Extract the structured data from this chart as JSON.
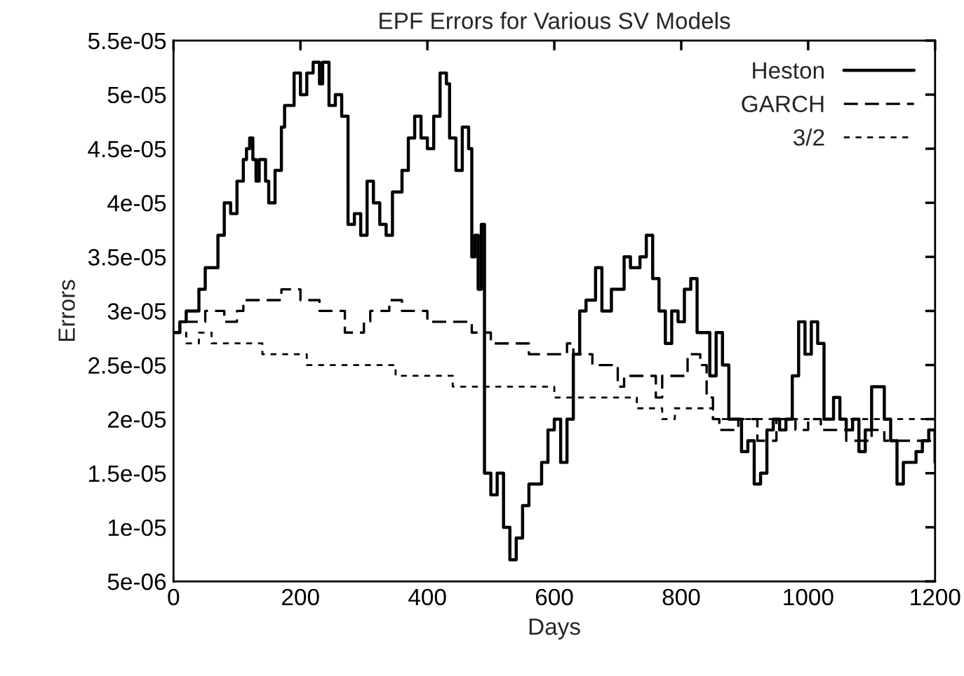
{
  "chart_data": {
    "type": "step",
    "title": "EPF Errors for Various SV Models",
    "xlabel": "Days",
    "ylabel": "Errors",
    "xlim": [
      0,
      1200
    ],
    "xticks": [
      0,
      200,
      400,
      600,
      800,
      1000,
      1200
    ],
    "ylim": [
      5e-06,
      5.5e-05
    ],
    "yticks": [
      {
        "value": 5e-06,
        "label": "5e-06"
      },
      {
        "value": 1e-05,
        "label": "1e-05"
      },
      {
        "value": 1.5e-05,
        "label": "1.5e-05"
      },
      {
        "value": 2e-05,
        "label": "2e-05"
      },
      {
        "value": 2.5e-05,
        "label": "2.5e-05"
      },
      {
        "value": 3e-05,
        "label": "3e-05"
      },
      {
        "value": 3.5e-05,
        "label": "3.5e-05"
      },
      {
        "value": 4e-05,
        "label": "4e-05"
      },
      {
        "value": 4.5e-05,
        "label": "4.5e-05"
      },
      {
        "value": 5e-05,
        "label": "5e-05"
      },
      {
        "value": 5.5e-05,
        "label": "5.5e-05"
      }
    ],
    "grid": false,
    "legend": "top right",
    "series": [
      {
        "name": "Heston",
        "color": "#000000",
        "line_style": "solid",
        "x": [
          0,
          10,
          20,
          30,
          40,
          50,
          60,
          70,
          80,
          90,
          100,
          110,
          115,
          120,
          125,
          130,
          135,
          145,
          150,
          160,
          165,
          170,
          175,
          180,
          190,
          200,
          210,
          220,
          230,
          235,
          245,
          255,
          265,
          270,
          275,
          285,
          295,
          305,
          315,
          325,
          335,
          345,
          360,
          370,
          380,
          390,
          400,
          410,
          420,
          430,
          435,
          445,
          455,
          465,
          470,
          475,
          480,
          485,
          490,
          500,
          510,
          520,
          530,
          540,
          550,
          560,
          570,
          580,
          590,
          600,
          610,
          620,
          630,
          640,
          650,
          665,
          675,
          690,
          700,
          710,
          720,
          735,
          745,
          755,
          765,
          775,
          785,
          795,
          805,
          815,
          825,
          835,
          845,
          855,
          865,
          875,
          885,
          895,
          905,
          915,
          925,
          935,
          945,
          955,
          965,
          975,
          985,
          995,
          1005,
          1015,
          1025,
          1040,
          1050,
          1060,
          1070,
          1080,
          1090,
          1100,
          1110,
          1120,
          1130,
          1140,
          1150,
          1160,
          1170,
          1180,
          1190,
          1200
        ],
        "values": [
          2.8e-05,
          2.9e-05,
          3e-05,
          3e-05,
          3.2e-05,
          3.4e-05,
          3.4e-05,
          3.7e-05,
          4e-05,
          3.9e-05,
          4.2e-05,
          4.4e-05,
          4.5e-05,
          4.6e-05,
          4.4e-05,
          4.2e-05,
          4.4e-05,
          4.2e-05,
          4e-05,
          4.3e-05,
          4.3e-05,
          4.7e-05,
          4.9e-05,
          4.9e-05,
          5.2e-05,
          5e-05,
          5.2e-05,
          5.3e-05,
          5.1e-05,
          5.3e-05,
          4.9e-05,
          5e-05,
          4.8e-05,
          4.8e-05,
          3.8e-05,
          3.9e-05,
          3.7e-05,
          4.2e-05,
          4e-05,
          3.8e-05,
          3.7e-05,
          4.1e-05,
          4.3e-05,
          4.6e-05,
          4.8e-05,
          4.6e-05,
          4.5e-05,
          4.8e-05,
          5.2e-05,
          5.1e-05,
          4.6e-05,
          4.3e-05,
          4.7e-05,
          4.5e-05,
          3.5e-05,
          3.7e-05,
          3.2e-05,
          3.8e-05,
          1.5e-05,
          1.3e-05,
          1.5e-05,
          1e-05,
          7e-06,
          9e-06,
          1.2e-05,
          1.4e-05,
          1.4e-05,
          1.6e-05,
          1.9e-05,
          2e-05,
          1.6e-05,
          2e-05,
          2.6e-05,
          3e-05,
          3.1e-05,
          3.4e-05,
          3e-05,
          3.2e-05,
          3.2e-05,
          3.5e-05,
          3.4e-05,
          3.5e-05,
          3.7e-05,
          3.3e-05,
          3e-05,
          2.7e-05,
          3e-05,
          2.9e-05,
          3.2e-05,
          3.3e-05,
          2.8e-05,
          2.8e-05,
          2.4e-05,
          2.8e-05,
          2.5e-05,
          2e-05,
          2e-05,
          1.7e-05,
          1.8e-05,
          1.4e-05,
          1.5e-05,
          1.9e-05,
          2e-05,
          1.9e-05,
          2e-05,
          2.4e-05,
          2.9e-05,
          2.6e-05,
          2.9e-05,
          2.7e-05,
          2e-05,
          2.2e-05,
          2e-05,
          1.9e-05,
          2e-05,
          1.7e-05,
          1.9e-05,
          2.3e-05,
          2.3e-05,
          2e-05,
          1.8e-05,
          1.4e-05,
          1.6e-05,
          1.6e-05,
          1.7e-05,
          1.8e-05,
          1.9e-05,
          1.6e-05
        ]
      },
      {
        "name": "GARCH",
        "color": "#000000",
        "line_style": "dashed",
        "x": [
          0,
          10,
          40,
          50,
          80,
          100,
          110,
          150,
          170,
          200,
          230,
          260,
          270,
          300,
          310,
          340,
          360,
          380,
          400,
          460,
          470,
          490,
          500,
          550,
          560,
          620,
          630,
          660,
          690,
          700,
          710,
          760,
          770,
          800,
          810,
          830,
          840,
          850,
          860,
          890,
          920,
          950,
          980,
          1000,
          1020,
          1060,
          1100,
          1120,
          1200
        ],
        "values": [
          2.8e-05,
          2.9e-05,
          2.9e-05,
          3e-05,
          2.9e-05,
          3e-05,
          3.1e-05,
          3.1e-05,
          3.2e-05,
          3.1e-05,
          3e-05,
          3e-05,
          2.8e-05,
          2.9e-05,
          3e-05,
          3.1e-05,
          3e-05,
          3e-05,
          2.9e-05,
          2.9e-05,
          2.8e-05,
          2.8e-05,
          2.7e-05,
          2.7e-05,
          2.6e-05,
          2.7e-05,
          2.6e-05,
          2.5e-05,
          2.5e-05,
          2.3e-05,
          2.4e-05,
          2.2e-05,
          2.4e-05,
          2.4e-05,
          2.6e-05,
          2.5e-05,
          2.2e-05,
          2e-05,
          1.9e-05,
          2e-05,
          1.8e-05,
          2e-05,
          1.9e-05,
          2e-05,
          1.9e-05,
          1.8e-05,
          1.9e-05,
          1.8e-05,
          1.8e-05
        ]
      },
      {
        "name": "3/2",
        "color": "#000000",
        "line_style": "dotted",
        "x": [
          0,
          20,
          40,
          60,
          130,
          140,
          200,
          210,
          340,
          350,
          420,
          440,
          590,
          600,
          650,
          700,
          730,
          770,
          790,
          830,
          850,
          1200
        ],
        "values": [
          2.8e-05,
          2.7e-05,
          2.8e-05,
          2.7e-05,
          2.7e-05,
          2.6e-05,
          2.6e-05,
          2.5e-05,
          2.5e-05,
          2.4e-05,
          2.4e-05,
          2.3e-05,
          2.3e-05,
          2.2e-05,
          2.2e-05,
          2.2e-05,
          2.1e-05,
          2e-05,
          2.1e-05,
          2.1e-05,
          2e-05,
          2e-05
        ]
      }
    ]
  }
}
